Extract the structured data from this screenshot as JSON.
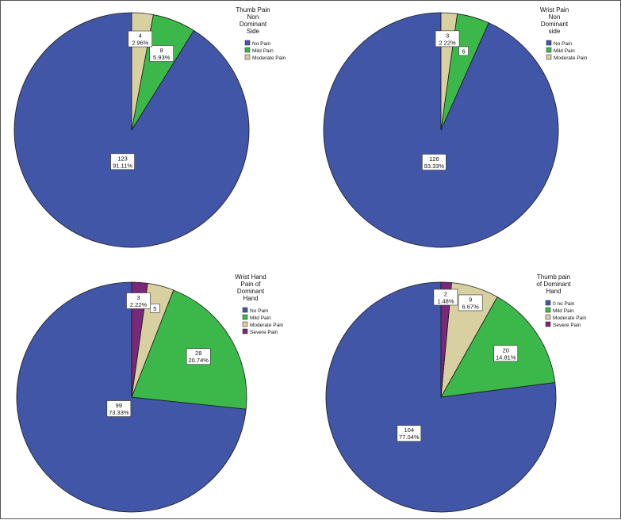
{
  "chart_data": [
    {
      "type": "pie",
      "legend_title": [
        "Thumb Pain",
        "Non",
        "Dominant",
        "Side"
      ],
      "categories": [
        "No Pain",
        "Mild Pain",
        "Moderate Pain"
      ],
      "values": [
        123,
        8,
        4
      ],
      "percent_labels": [
        "91.11%",
        "5.93%",
        "2.96%"
      ],
      "colors": [
        "#4256a8",
        "#3cb84a",
        "#d8d0a0"
      ],
      "legend_position": "top-right",
      "start_angle_deg": 0,
      "direction": "counterclockwise"
    },
    {
      "type": "pie",
      "legend_title": [
        "Wrist Pain",
        "Non",
        "Dominant",
        "side"
      ],
      "categories": [
        "No Pain",
        "Mild Pain",
        "Moderate Pain"
      ],
      "values": [
        126,
        6,
        3
      ],
      "percent_labels": [
        "93.33%",
        "",
        "2.22%"
      ],
      "colors": [
        "#4256a8",
        "#3cb84a",
        "#d8d0a0"
      ],
      "legend_position": "top-right",
      "start_angle_deg": 0,
      "direction": "counterclockwise"
    },
    {
      "type": "pie",
      "legend_title": [
        "Wrist Hand",
        "Pain of",
        "Dominant",
        "Hand"
      ],
      "categories": [
        "No Pain",
        "Mild Pain",
        "Moderate Pain",
        "Severe Pain"
      ],
      "values": [
        99,
        28,
        5,
        3
      ],
      "percent_labels": [
        "73.33%",
        "20.74%",
        "",
        "2.22%"
      ],
      "colors": [
        "#4256a8",
        "#3cb84a",
        "#d8d0a0",
        "#7a2878"
      ],
      "legend_position": "top-right",
      "start_angle_deg": 0,
      "direction": "counterclockwise"
    },
    {
      "type": "pie",
      "legend_title": [
        "Thumb pain",
        "of Dominant",
        "Hand"
      ],
      "categories": [
        "0 no Pain",
        "Mild Pain",
        "Moderate Pain",
        "Severe Pain"
      ],
      "values": [
        104,
        20,
        9,
        2
      ],
      "percent_labels": [
        "77.04%",
        "14.81%",
        "6.67%",
        "1.48%"
      ],
      "colors": [
        "#4256a8",
        "#3cb84a",
        "#d8d0a0",
        "#7a2878"
      ],
      "legend_position": "top-right",
      "start_angle_deg": 0,
      "direction": "counterclockwise"
    }
  ]
}
